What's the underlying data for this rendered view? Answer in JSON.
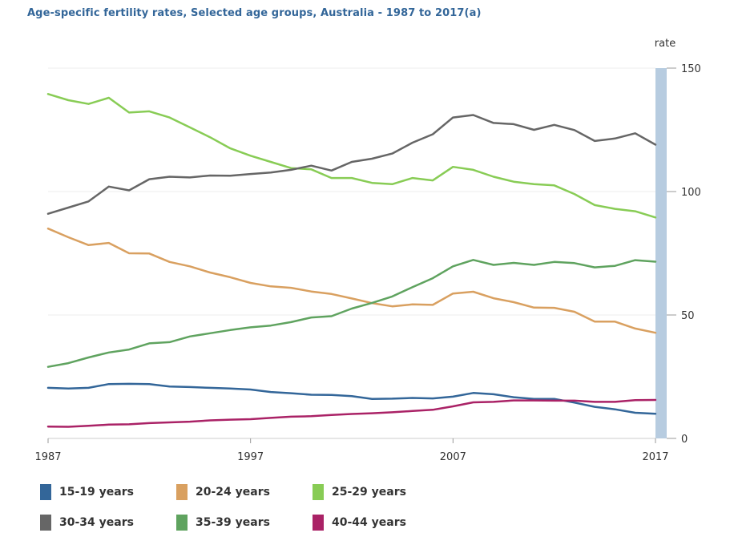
{
  "title": "Age-specific fertility rates, Selected age groups, Australia - 1987 to 2017(a)",
  "chart_data": {
    "type": "line",
    "title": "Age-specific fertility rates, Selected age groups, Australia - 1987 to 2017(a)",
    "ylabel": "rate",
    "xlabel": "",
    "ylim": [
      0,
      150
    ],
    "xlim": [
      1987,
      2017
    ],
    "y_ticks": [
      "0",
      "50",
      "100",
      "150"
    ],
    "x_ticks": [
      {
        "value": 1987,
        "label": "1987"
      },
      {
        "value": 1997,
        "label": "1997"
      },
      {
        "value": 2007,
        "label": "2007"
      },
      {
        "value": 2017,
        "label": "2017"
      }
    ],
    "y_axis_side": "right",
    "grid": "horizontal",
    "legend_position": "bottom",
    "x": [
      1987,
      1988,
      1989,
      1990,
      1991,
      1992,
      1993,
      1994,
      1995,
      1996,
      1997,
      1998,
      1999,
      2000,
      2001,
      2002,
      2003,
      2004,
      2005,
      2006,
      2007,
      2008,
      2009,
      2010,
      2011,
      2012,
      2013,
      2014,
      2015,
      2016,
      2017
    ],
    "series": [
      {
        "name": "15-19 years",
        "color": "#336699",
        "values": [
          20.5,
          20.2,
          20.5,
          22.0,
          22.1,
          22.0,
          21.0,
          20.8,
          20.5,
          20.2,
          19.8,
          18.8,
          18.3,
          17.7,
          17.6,
          17.1,
          16.0,
          16.1,
          16.4,
          16.2,
          16.9,
          18.4,
          17.9,
          16.7,
          16.0,
          16.0,
          14.5,
          12.8,
          11.8,
          10.4,
          10.0
        ]
      },
      {
        "name": "20-24 years",
        "color": "#d9a060",
        "values": [
          85.0,
          81.5,
          78.3,
          79.2,
          75.0,
          74.9,
          71.5,
          69.7,
          67.2,
          65.3,
          63.0,
          61.6,
          61.0,
          59.5,
          58.5,
          56.7,
          54.8,
          53.5,
          54.3,
          54.1,
          58.7,
          59.4,
          56.8,
          55.2,
          53.0,
          52.9,
          51.3,
          47.3,
          47.3,
          44.5,
          42.8
        ]
      },
      {
        "name": "25-29 years",
        "color": "#88cc55",
        "values": [
          139.5,
          137.0,
          135.5,
          138.0,
          132.0,
          132.5,
          130.0,
          126.0,
          122.0,
          117.5,
          114.5,
          112.0,
          109.5,
          109.0,
          105.5,
          105.5,
          103.5,
          103.0,
          105.5,
          104.5,
          110.0,
          108.8,
          106.0,
          104.0,
          103.0,
          102.5,
          99.0,
          94.5,
          93.0,
          92.0,
          89.5
        ]
      },
      {
        "name": "30-34 years",
        "color": "#666666",
        "values": [
          91.0,
          93.5,
          96.0,
          102.0,
          100.5,
          105.0,
          106.0,
          105.7,
          106.5,
          106.4,
          107.1,
          107.7,
          108.8,
          110.5,
          108.5,
          112.0,
          113.3,
          115.4,
          119.8,
          123.2,
          130.0,
          131.0,
          127.8,
          127.3,
          125.0,
          127.0,
          124.9,
          120.5,
          121.5,
          123.6,
          119.0
        ]
      },
      {
        "name": "35-39 years",
        "color": "#5fa35f",
        "values": [
          29.0,
          30.5,
          32.8,
          34.8,
          36.0,
          38.5,
          39.0,
          41.3,
          42.6,
          43.9,
          45.0,
          45.7,
          47.1,
          49.0,
          49.5,
          52.6,
          54.9,
          57.5,
          61.3,
          64.9,
          69.7,
          72.3,
          70.3,
          71.1,
          70.3,
          71.5,
          71.0,
          69.3,
          69.9,
          72.2,
          71.6
        ]
      },
      {
        "name": "40-44 years",
        "color": "#aa2266",
        "values": [
          4.8,
          4.7,
          5.1,
          5.6,
          5.7,
          6.2,
          6.5,
          6.8,
          7.3,
          7.6,
          7.8,
          8.3,
          8.8,
          9.0,
          9.5,
          9.9,
          10.2,
          10.6,
          11.1,
          11.6,
          13.0,
          14.6,
          14.8,
          15.4,
          15.4,
          15.3,
          15.3,
          14.8,
          14.8,
          15.5,
          15.6
        ]
      }
    ]
  }
}
